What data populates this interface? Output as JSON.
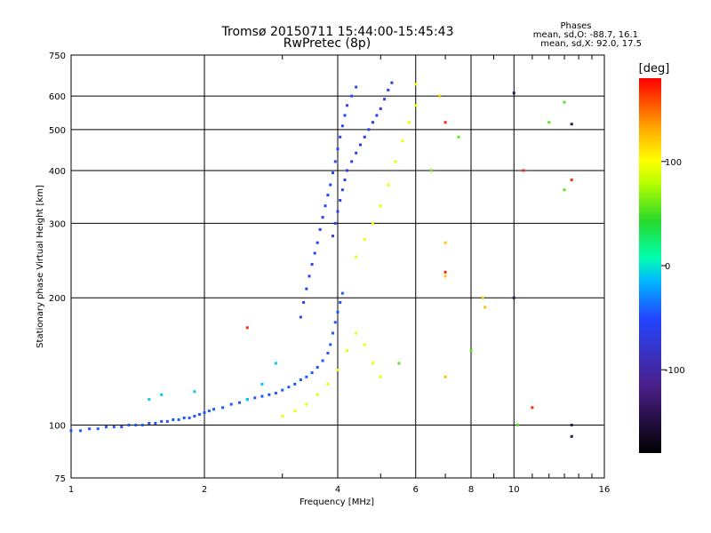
{
  "chart_data": {
    "type": "scatter",
    "title": "Tromsø 20150711 15:44:00-15:45:43",
    "subtitle": "RwPretec (8p)",
    "xlabel": "Frequency [MHz]",
    "ylabel": "Stationary phase Virtual Height [km]",
    "x_scale": "log",
    "y_scale": "log",
    "xlim": [
      1,
      16
    ],
    "ylim": [
      75,
      750
    ],
    "x_ticks": [
      1,
      2,
      4,
      6,
      8,
      10,
      16
    ],
    "y_ticks": [
      75,
      100,
      200,
      300,
      400,
      500,
      600,
      750
    ],
    "grid": true,
    "phases": {
      "heading": "Phases",
      "line_o": "mean, sd,O: -88.7, 16.1",
      "line_x": "mean, sd,X:  92.0, 17.5"
    },
    "colorbar": {
      "label": "[deg]",
      "range": [
        -180,
        180
      ],
      "ticks": [
        100,
        0,
        -100
      ]
    },
    "series": [
      {
        "colour_deg": -95,
        "points": [
          [
            1.0,
            97
          ],
          [
            1.05,
            97
          ],
          [
            1.1,
            98
          ],
          [
            1.15,
            98
          ],
          [
            1.2,
            99
          ],
          [
            1.25,
            99
          ],
          [
            1.3,
            99
          ],
          [
            1.35,
            100
          ],
          [
            1.4,
            100
          ],
          [
            1.45,
            100
          ],
          [
            1.5,
            101
          ],
          [
            1.55,
            101
          ],
          [
            1.6,
            102
          ],
          [
            1.65,
            102
          ],
          [
            1.7,
            103
          ],
          [
            1.75,
            103
          ],
          [
            1.8,
            104
          ],
          [
            1.85,
            104
          ],
          [
            1.9,
            105
          ],
          [
            1.95,
            106
          ],
          [
            2.0,
            107
          ],
          [
            2.05,
            108
          ],
          [
            2.1,
            109
          ],
          [
            2.2,
            110
          ],
          [
            2.3,
            112
          ],
          [
            2.4,
            113
          ],
          [
            2.5,
            115
          ],
          [
            2.6,
            116
          ],
          [
            2.7,
            117
          ],
          [
            2.8,
            118
          ],
          [
            2.9,
            119
          ],
          [
            3.0,
            121
          ],
          [
            3.1,
            123
          ],
          [
            3.2,
            125
          ],
          [
            3.3,
            128
          ],
          [
            3.4,
            130
          ],
          [
            3.5,
            133
          ],
          [
            3.6,
            137
          ],
          [
            3.7,
            142
          ],
          [
            3.8,
            148
          ],
          [
            3.85,
            155
          ],
          [
            3.9,
            165
          ],
          [
            3.95,
            175
          ],
          [
            4.0,
            185
          ],
          [
            4.05,
            195
          ],
          [
            4.1,
            205
          ]
        ]
      },
      {
        "colour_deg": -100,
        "points": [
          [
            3.3,
            180
          ],
          [
            3.35,
            195
          ],
          [
            3.4,
            210
          ],
          [
            3.45,
            225
          ],
          [
            3.5,
            240
          ],
          [
            3.55,
            255
          ],
          [
            3.6,
            270
          ],
          [
            3.65,
            290
          ],
          [
            3.7,
            310
          ],
          [
            3.75,
            330
          ],
          [
            3.8,
            350
          ],
          [
            3.85,
            370
          ],
          [
            3.9,
            395
          ],
          [
            3.95,
            420
          ],
          [
            4.0,
            450
          ],
          [
            4.05,
            480
          ],
          [
            4.1,
            510
          ],
          [
            4.15,
            540
          ],
          [
            4.2,
            570
          ],
          [
            4.3,
            600
          ],
          [
            4.4,
            630
          ]
        ]
      },
      {
        "colour_deg": -105,
        "points": [
          [
            3.9,
            280
          ],
          [
            3.95,
            300
          ],
          [
            4.0,
            320
          ],
          [
            4.05,
            340
          ],
          [
            4.1,
            360
          ],
          [
            4.15,
            380
          ],
          [
            4.2,
            400
          ],
          [
            4.3,
            420
          ],
          [
            4.4,
            440
          ],
          [
            4.5,
            460
          ],
          [
            4.6,
            480
          ],
          [
            4.7,
            500
          ],
          [
            4.8,
            520
          ],
          [
            4.9,
            540
          ],
          [
            5.0,
            560
          ],
          [
            5.1,
            590
          ],
          [
            5.2,
            620
          ],
          [
            5.3,
            645
          ]
        ]
      },
      {
        "colour_deg": 90,
        "points": [
          [
            3.0,
            105
          ],
          [
            3.2,
            108
          ],
          [
            3.4,
            112
          ],
          [
            3.6,
            118
          ],
          [
            3.8,
            125
          ],
          [
            4.0,
            135
          ],
          [
            4.2,
            150
          ],
          [
            4.4,
            165
          ],
          [
            4.6,
            155
          ],
          [
            4.8,
            140
          ],
          [
            5.0,
            130
          ],
          [
            4.4,
            250
          ],
          [
            4.6,
            275
          ],
          [
            4.8,
            300
          ],
          [
            5.0,
            330
          ],
          [
            5.2,
            370
          ],
          [
            5.4,
            420
          ],
          [
            5.6,
            470
          ],
          [
            5.8,
            520
          ],
          [
            6.0,
            570
          ],
          [
            6.0,
            640
          ]
        ]
      },
      {
        "colour_deg": 130,
        "points": [
          [
            6.8,
            600
          ],
          [
            7.0,
            270
          ],
          [
            7.0,
            225
          ],
          [
            7.0,
            130
          ],
          [
            8.5,
            200
          ],
          [
            8.6,
            190
          ]
        ]
      },
      {
        "colour_deg": -60,
        "points": [
          [
            2.5,
            115
          ],
          [
            2.7,
            125
          ],
          [
            2.9,
            140
          ],
          [
            1.9,
            120
          ],
          [
            1.6,
            118
          ],
          [
            1.5,
            115
          ]
        ]
      },
      {
        "colour_deg": -150,
        "points": [
          [
            10.0,
            610
          ],
          [
            13.5,
            515
          ],
          [
            13.5,
            100
          ],
          [
            10.0,
            200
          ],
          [
            13.5,
            94
          ]
        ]
      },
      {
        "colour_deg": 170,
        "points": [
          [
            2.5,
            170
          ],
          [
            10.5,
            400
          ],
          [
            11.0,
            110
          ],
          [
            13.5,
            380
          ],
          [
            7.0,
            230
          ],
          [
            7.0,
            520
          ]
        ]
      },
      {
        "colour_deg": 20,
        "points": [
          [
            5.5,
            140
          ],
          [
            7.5,
            480
          ],
          [
            6.5,
            400
          ],
          [
            10.2,
            100
          ],
          [
            13.0,
            580
          ],
          [
            12.0,
            520
          ],
          [
            8.0,
            150
          ],
          [
            13.0,
            360
          ]
        ]
      }
    ]
  }
}
